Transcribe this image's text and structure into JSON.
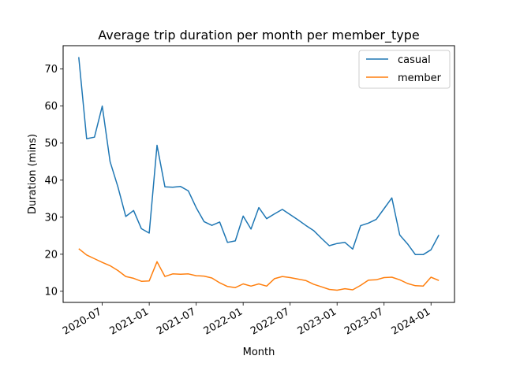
{
  "chart_data": {
    "type": "line",
    "title": "Average trip duration per month per member_type",
    "xlabel": "Month",
    "ylabel": "Duration (mins)",
    "x_dates": [
      "2020-04",
      "2020-05",
      "2020-06",
      "2020-07",
      "2020-08",
      "2020-09",
      "2020-10",
      "2020-11",
      "2020-12",
      "2021-01",
      "2021-02",
      "2021-03",
      "2021-04",
      "2021-05",
      "2021-06",
      "2021-07",
      "2021-08",
      "2021-09",
      "2021-10",
      "2021-11",
      "2021-12",
      "2022-01",
      "2022-02",
      "2022-03",
      "2022-04",
      "2022-05",
      "2022-06",
      "2022-07",
      "2022-08",
      "2022-09",
      "2022-10",
      "2022-11",
      "2022-12",
      "2023-01",
      "2023-02",
      "2023-03",
      "2023-04",
      "2023-05",
      "2023-06",
      "2023-07",
      "2023-08",
      "2023-09",
      "2023-10",
      "2023-11",
      "2023-12",
      "2024-01",
      "2024-02"
    ],
    "series": [
      {
        "name": "casual",
        "color": "#1f77b4",
        "values": [
          73.2,
          51.2,
          51.6,
          60.0,
          45.0,
          38.2,
          30.2,
          31.8,
          26.9,
          25.7,
          49.4,
          38.2,
          38.1,
          38.3,
          37.1,
          32.6,
          28.8,
          27.8,
          28.7,
          23.2,
          23.6,
          30.3,
          26.8,
          32.6,
          29.6,
          30.9,
          32.1,
          30.7,
          29.3,
          27.8,
          26.4,
          24.3,
          22.3,
          22.9,
          23.2,
          21.4,
          27.7,
          28.4,
          29.4,
          32.3,
          35.2,
          25.2,
          22.8,
          19.9,
          19.9,
          21.2,
          25.2
        ]
      },
      {
        "name": "member",
        "color": "#ff7f0e",
        "values": [
          21.5,
          19.8,
          18.8,
          17.8,
          16.9,
          15.6,
          14.0,
          13.5,
          12.7,
          12.8,
          18.0,
          14.0,
          14.7,
          14.6,
          14.7,
          14.2,
          14.1,
          13.6,
          12.3,
          11.3,
          11.0,
          12.0,
          11.4,
          12.0,
          11.4,
          13.4,
          14.0,
          13.7,
          13.3,
          12.9,
          11.9,
          11.2,
          10.5,
          10.3,
          10.7,
          10.4,
          11.6,
          13.0,
          13.1,
          13.7,
          13.8,
          13.1,
          12.1,
          11.5,
          11.4,
          13.8,
          12.9
        ]
      }
    ],
    "xticks": [
      {
        "date": "2020-07",
        "label": "2020-07"
      },
      {
        "date": "2021-01",
        "label": "2021-01"
      },
      {
        "date": "2021-07",
        "label": "2021-07"
      },
      {
        "date": "2022-01",
        "label": "2022-01"
      },
      {
        "date": "2022-07",
        "label": "2022-07"
      },
      {
        "date": "2023-01",
        "label": "2023-01"
      },
      {
        "date": "2023-07",
        "label": "2023-07"
      },
      {
        "date": "2024-01",
        "label": "2024-01"
      }
    ],
    "yticks": [
      10,
      20,
      30,
      40,
      50,
      60,
      70
    ],
    "ylim": [
      7.0,
      76.3
    ],
    "xlim": [
      "2020-02",
      "2024-04"
    ],
    "grid": false,
    "legend_position": "upper right"
  }
}
